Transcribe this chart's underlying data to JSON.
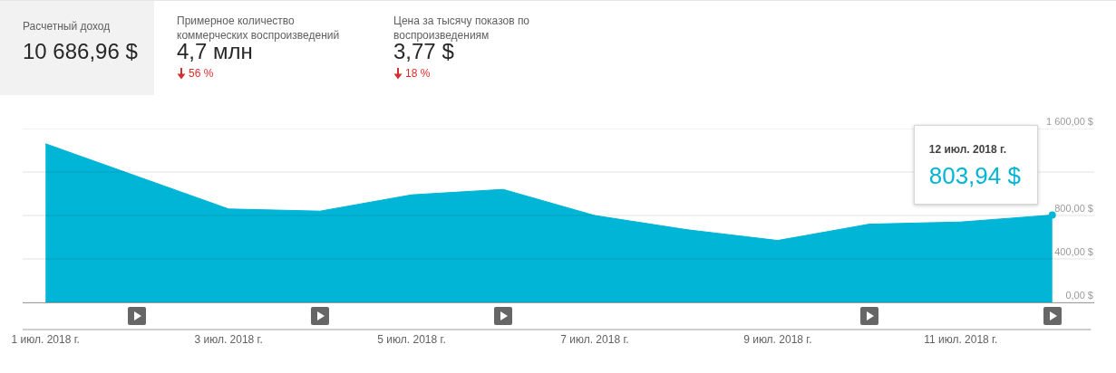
{
  "chart_data": [
    {
      "type": "other",
      "title": "Расчетный доход",
      "annotations": [
        "10 686,96 $"
      ]
    },
    {
      "type": "other",
      "title": "Примерное количество коммерческих воспроизведений",
      "annotations": [
        "4,7 млн",
        "56 %"
      ]
    },
    {
      "type": "other",
      "title": "Цена за тысячу показов по воспроизведениям",
      "annotations": [
        "3,77 $",
        "18 %"
      ]
    },
    {
      "type": "area",
      "x": [
        "2018-07-01",
        "2018-07-02",
        "2018-07-03",
        "2018-07-04",
        "2018-07-05",
        "2018-07-06",
        "2018-07-07",
        "2018-07-08",
        "2018-07-09",
        "2018-07-10",
        "2018-07-11",
        "2018-07-12"
      ],
      "values": [
        1460,
        1160,
        860,
        840,
        990,
        1040,
        800,
        670,
        570,
        720,
        740,
        803.94
      ],
      "color": "#00b5d5",
      "xlim": [
        "2018-06-30T18:00",
        "2018-07-12T11:00"
      ],
      "xticks": [
        {
          "value": "2018-07-01",
          "label": "1 июл. 2018 г."
        },
        {
          "value": "2018-07-03",
          "label": "3 июл. 2018 г."
        },
        {
          "value": "2018-07-05",
          "label": "5 июл. 2018 г."
        },
        {
          "value": "2018-07-07",
          "label": "7 июл. 2018 г."
        },
        {
          "value": "2018-07-09",
          "label": "9 июл. 2018 г."
        },
        {
          "value": "2018-07-11",
          "label": "11 июл. 2018 г."
        }
      ],
      "ylim": [
        0,
        1600
      ],
      "yticks": [
        {
          "value": 0,
          "label": "0,00 $"
        },
        {
          "value": 400,
          "label": "400,00 $"
        },
        {
          "value": 800,
          "label": "800,00 $"
        },
        {
          "value": 1200,
          "label": null
        },
        {
          "value": 1600,
          "label": "1 600,00 $"
        }
      ],
      "grid": "y",
      "annotations": [
        "12 июл. 2018 г.",
        {
          "text": "803,94 $",
          "x": "2018-07-12",
          "y": 803.94
        }
      ]
    }
  ]
}
